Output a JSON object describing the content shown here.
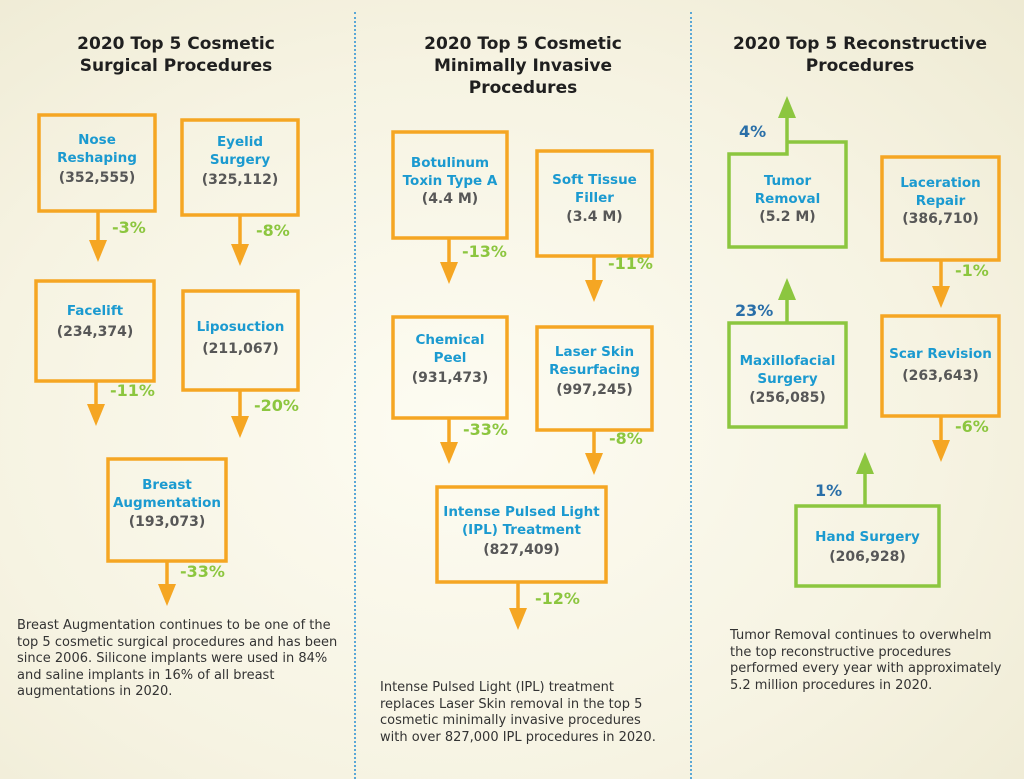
{
  "columns": [
    {
      "title": [
        "2020 Top 5 Cosmetic",
        "Surgical Procedures"
      ],
      "items": [
        {
          "name": [
            "Nose",
            "Reshaping"
          ],
          "count": "(352,555)",
          "change": "-3%"
        },
        {
          "name": [
            "Eyelid",
            "Surgery"
          ],
          "count": "(325,112)",
          "change": "-8%"
        },
        {
          "name": [
            "Facelift"
          ],
          "count": "(234,374)",
          "change": "-11%"
        },
        {
          "name": [
            "Liposuction"
          ],
          "count": "(211,067)",
          "change": "-20%"
        },
        {
          "name": [
            "Breast",
            "Augmentation"
          ],
          "count": "(193,073)",
          "change": "-33%"
        }
      ],
      "note": "Breast Augmentation continues to be one of the top 5 cosmetic surgical procedures and has been since 2006. Silicone implants were used in 84% and saline implants in 16% of all breast augmentations in 2020."
    },
    {
      "title": [
        "2020 Top 5 Cosmetic",
        "Minimally Invasive",
        "Procedures"
      ],
      "items": [
        {
          "name": [
            "Botulinum",
            "Toxin Type A"
          ],
          "count": "(4.4 M)",
          "change": "-13%"
        },
        {
          "name": [
            "Soft Tissue",
            "Filler"
          ],
          "count": "(3.4 M)",
          "change": "-11%"
        },
        {
          "name": [
            "Chemical",
            "Peel"
          ],
          "count": "(931,473)",
          "change": "-33%"
        },
        {
          "name": [
            "Laser Skin",
            "Resurfacing"
          ],
          "count": "(997,245)",
          "change": "-8%"
        },
        {
          "name": [
            "Intense Pulsed Light",
            "(IPL) Treatment"
          ],
          "count": "(827,409)",
          "change": "-12%"
        }
      ],
      "note": "Intense Pulsed Light (IPL) treatment replaces Laser Skin removal in the top 5 cosmetic minimally invasive procedures with over 827,000 IPL procedures in 2020."
    },
    {
      "title": [
        "2020 Top 5 Reconstructive",
        "Procedures"
      ],
      "items": [
        {
          "name": [
            "Tumor",
            "Removal"
          ],
          "count": "(5.2 M)",
          "change": "4%"
        },
        {
          "name": [
            "Laceration",
            "Repair"
          ],
          "count": "(386,710)",
          "change": "-1%"
        },
        {
          "name": [
            "Maxillofacial",
            "Surgery"
          ],
          "count": "(256,085)",
          "change": "23%"
        },
        {
          "name": [
            "Scar Revision"
          ],
          "count": "(263,643)",
          "change": "-6%"
        },
        {
          "name": [
            "Hand Surgery"
          ],
          "count": "(206,928)",
          "change": "1%"
        }
      ],
      "note": "Tumor Removal continues to overwhelm the top reconstructive procedures performed every year with approximately 5.2 million procedures in 2020."
    }
  ],
  "colors": {
    "decrease": "#f5a623",
    "increase": "#8cc63f",
    "label": "#1b9ad0",
    "value": "#575757",
    "increase_pct": "#2a6fa8"
  }
}
